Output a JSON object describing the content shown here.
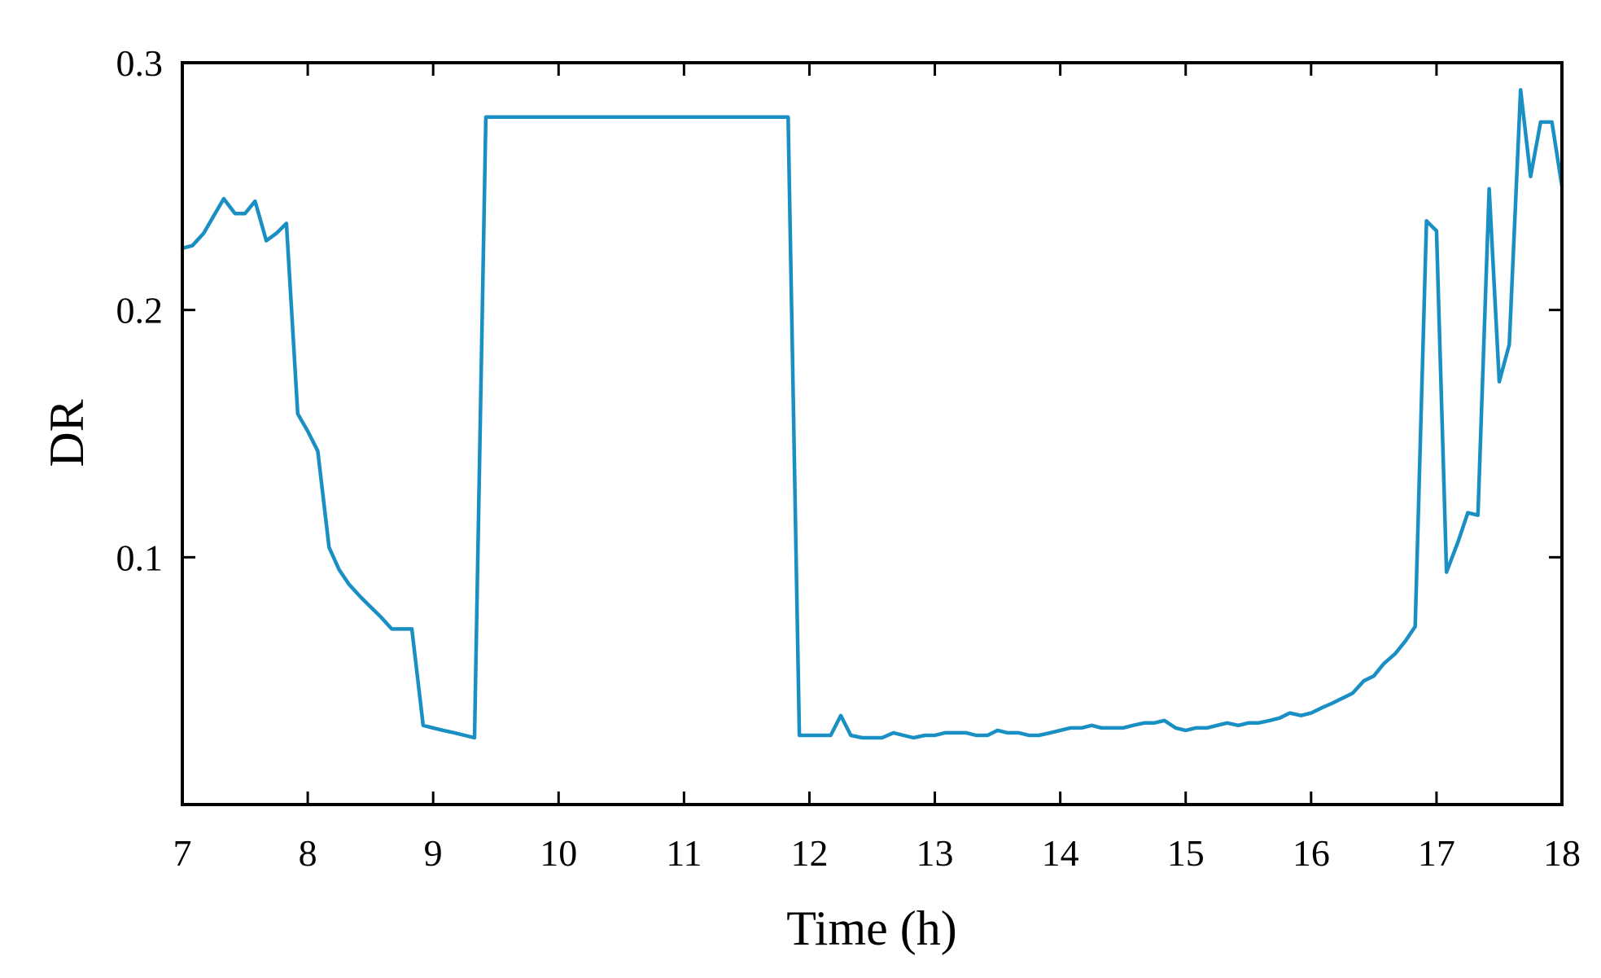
{
  "chart_data": {
    "type": "line",
    "title": "",
    "xlabel": "Time (h)",
    "ylabel": "DR",
    "xlim": [
      7,
      18
    ],
    "ylim": [
      0.0,
      0.3
    ],
    "x_ticks": [
      7,
      8,
      9,
      10,
      11,
      12,
      13,
      14,
      15,
      16,
      17,
      18
    ],
    "x_tick_labels": [
      "7",
      "8",
      "9",
      "10",
      "11",
      "12",
      "13",
      "14",
      "15",
      "16",
      "17",
      "18"
    ],
    "y_ticks": [
      0.1,
      0.2,
      0.3
    ],
    "y_tick_labels": [
      "0.1",
      "0.2",
      "0.3"
    ],
    "grid": false,
    "legend": "none",
    "line_color": "#1a8fc3",
    "series": [
      {
        "x": [
          7.0,
          7.08,
          7.17,
          7.25,
          7.33,
          7.42,
          7.5,
          7.58,
          7.67,
          7.75,
          7.83,
          7.92,
          8.0,
          8.08,
          8.17,
          8.25,
          8.33,
          8.42,
          8.5,
          8.58,
          8.67,
          8.75,
          8.83,
          8.92,
          9.0,
          9.08,
          9.17,
          9.25,
          9.33,
          9.42,
          9.5,
          10.0,
          10.5,
          11.0,
          11.5,
          11.83,
          11.92,
          12.0,
          12.08,
          12.17,
          12.25,
          12.33,
          12.42,
          12.5,
          12.58,
          12.67,
          12.75,
          12.83,
          12.92,
          13.0,
          13.08,
          13.17,
          13.25,
          13.33,
          13.42,
          13.5,
          13.58,
          13.67,
          13.75,
          13.83,
          13.92,
          14.0,
          14.08,
          14.17,
          14.25,
          14.33,
          14.42,
          14.5,
          14.58,
          14.67,
          14.75,
          14.83,
          14.92,
          15.0,
          15.08,
          15.17,
          15.25,
          15.33,
          15.42,
          15.5,
          15.58,
          15.67,
          15.75,
          15.83,
          15.92,
          16.0,
          16.08,
          16.17,
          16.25,
          16.33,
          16.42,
          16.5,
          16.58,
          16.67,
          16.75,
          16.83,
          16.92,
          17.0,
          17.08,
          17.17,
          17.25,
          17.33,
          17.42,
          17.5,
          17.58,
          17.67,
          17.75,
          17.83,
          17.92,
          18.0
        ],
        "y": [
          0.225,
          0.226,
          0.231,
          0.238,
          0.245,
          0.239,
          0.239,
          0.244,
          0.228,
          0.231,
          0.235,
          0.158,
          0.151,
          0.143,
          0.104,
          0.095,
          0.089,
          0.084,
          0.08,
          0.076,
          0.071,
          0.071,
          0.071,
          0.032,
          0.031,
          0.03,
          0.029,
          0.028,
          0.027,
          0.278,
          0.278,
          0.278,
          0.278,
          0.278,
          0.278,
          0.278,
          0.028,
          0.028,
          0.028,
          0.028,
          0.036,
          0.028,
          0.027,
          0.027,
          0.027,
          0.029,
          0.028,
          0.027,
          0.028,
          0.028,
          0.029,
          0.029,
          0.029,
          0.028,
          0.028,
          0.03,
          0.029,
          0.029,
          0.028,
          0.028,
          0.029,
          0.03,
          0.031,
          0.031,
          0.032,
          0.031,
          0.031,
          0.031,
          0.032,
          0.033,
          0.033,
          0.034,
          0.031,
          0.03,
          0.031,
          0.031,
          0.032,
          0.033,
          0.032,
          0.033,
          0.033,
          0.034,
          0.035,
          0.037,
          0.036,
          0.037,
          0.039,
          0.041,
          0.043,
          0.045,
          0.05,
          0.052,
          0.057,
          0.061,
          0.066,
          0.072,
          0.236,
          0.232,
          0.094,
          0.106,
          0.118,
          0.117,
          0.249,
          0.171,
          0.186,
          0.289,
          0.254,
          0.276,
          0.276,
          0.25
        ]
      }
    ]
  }
}
